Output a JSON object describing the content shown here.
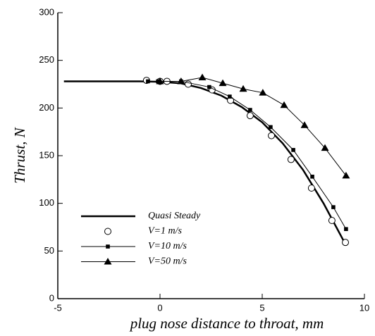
{
  "chart_data": {
    "type": "line",
    "xlabel": "plug nose distance to throat, mm",
    "ylabel": "Thrust, N",
    "xlim": [
      -5,
      10
    ],
    "xticks": [
      -5,
      0,
      5,
      10
    ],
    "ylim": [
      0,
      300
    ],
    "yticks": [
      0,
      50,
      100,
      150,
      200,
      250,
      300
    ],
    "legend": "lower left",
    "series": [
      {
        "name": "Quasi Steady",
        "color": "#000000",
        "marker": "none",
        "line_width": 2.5,
        "x": [
          -4.7,
          -1,
          0,
          1,
          2,
          3,
          4,
          5,
          6,
          7,
          8,
          9
        ],
        "values": [
          228,
          228,
          227.5,
          226,
          221,
          213,
          201,
          185,
          163,
          135,
          100,
          60
        ]
      },
      {
        "name": "V=1   m/s",
        "color": "#000000",
        "marker": "open-circle",
        "line_width": 0,
        "x": [
          -0.66,
          0,
          0.34,
          1.38,
          2.55,
          3.45,
          4.41,
          5.45,
          6.41,
          7.41,
          8.41,
          9.07
        ],
        "values": [
          229,
          228,
          228,
          225,
          219,
          208,
          192,
          171,
          146,
          116,
          82,
          59
        ]
      },
      {
        "name": "V=10 m/s",
        "color": "#000000",
        "marker": "square",
        "line_width": 1,
        "x": [
          -0.59,
          -0.1,
          1.03,
          2.41,
          3.41,
          4.41,
          5.41,
          6.52,
          7.45,
          8.48,
          9.1
        ],
        "values": [
          228,
          228,
          228,
          222,
          212,
          198,
          180,
          156,
          128,
          96,
          73
        ]
      },
      {
        "name": "V=50 m/s",
        "color": "#000000",
        "marker": "triangle",
        "line_width": 1,
        "x": [
          0,
          1.03,
          2.07,
          3.07,
          4.07,
          5.03,
          6.07,
          7.07,
          8.07,
          9.1
        ],
        "values": [
          228,
          228,
          232,
          226,
          220,
          216,
          203,
          182,
          158,
          129
        ]
      }
    ]
  }
}
